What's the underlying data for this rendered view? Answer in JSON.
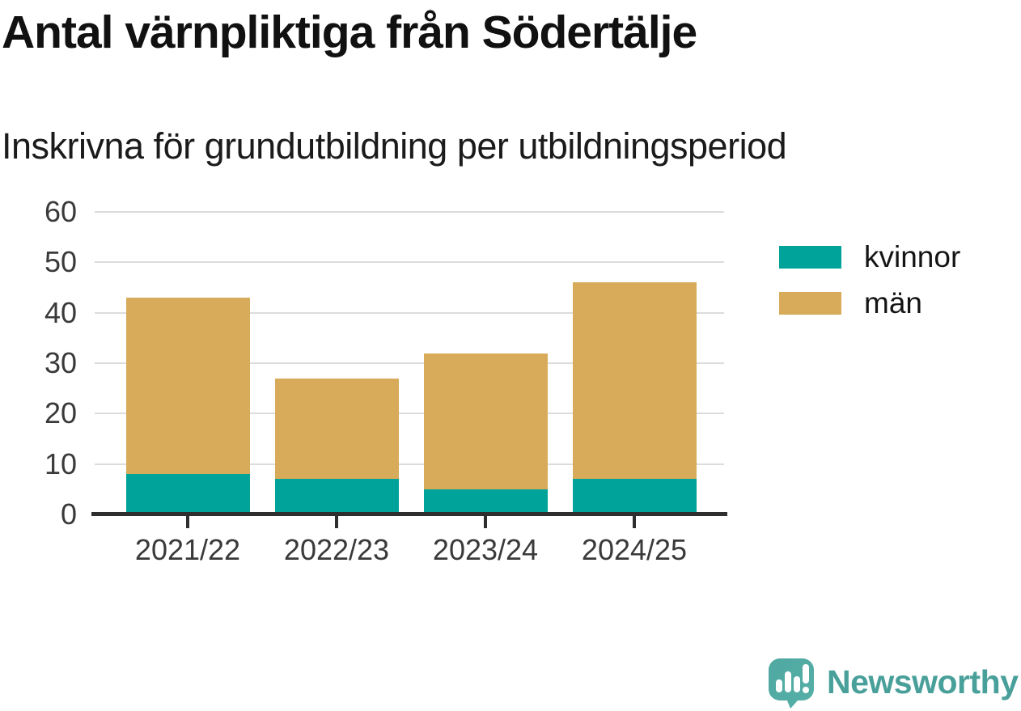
{
  "title": "Antal värnpliktiga från Södertälje",
  "subtitle": "Inskrivna för grundutbildning per utbildningsperiod",
  "chart_data": {
    "type": "bar",
    "stacked": true,
    "title": "Antal värnpliktiga från Södertälje",
    "subtitle": "Inskrivna för grundutbildning per utbildningsperiod",
    "categories": [
      "2021/22",
      "2022/23",
      "2023/24",
      "2024/25"
    ],
    "series": [
      {
        "name": "kvinnor",
        "color": "#00a39a",
        "values": [
          8,
          7,
          5,
          7
        ]
      },
      {
        "name": "män",
        "color": "#d8ab5a",
        "values": [
          35,
          20,
          27,
          39
        ]
      }
    ],
    "totals": [
      43,
      27,
      32,
      46
    ],
    "xlabel": "",
    "ylabel": "",
    "ylim": [
      0,
      60
    ],
    "yticks": [
      0,
      10,
      20,
      30,
      40,
      50,
      60
    ],
    "grid": true,
    "legend_position": "right"
  },
  "colors": {
    "kvinnor": "#00a39a",
    "man": "#d8ab5a",
    "grid": "#dcdcdc",
    "axis": "#2e2e2e",
    "tick_text": "#3a3a3a",
    "brand_teal": "#49a09a"
  },
  "branding": {
    "logo_text": "Newsworthy",
    "logo_icon": "speech-bubble-bar-chart-icon"
  }
}
